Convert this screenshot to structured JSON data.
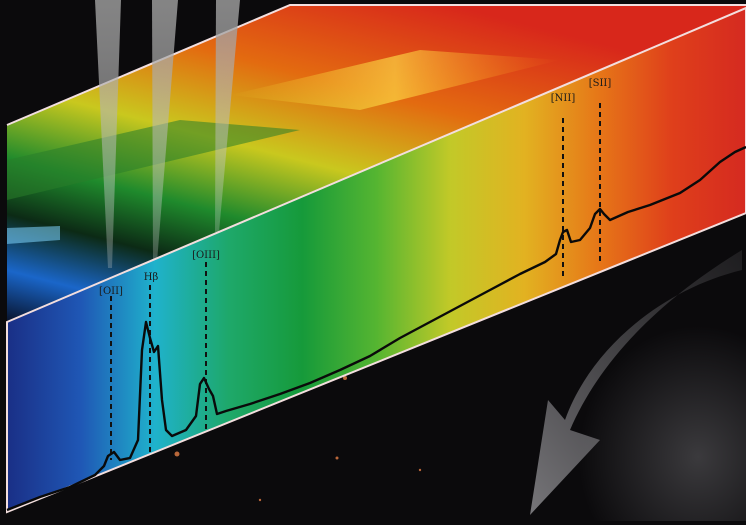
{
  "figure": {
    "lines": [
      {
        "id": "oii-3727",
        "label": "[OII]"
      },
      {
        "id": "h-beta",
        "label": "Hβ"
      },
      {
        "id": "oiii-5007",
        "label": "[OIII]"
      },
      {
        "id": "nii-6584",
        "label": "[NII]"
      },
      {
        "id": "sii-6717",
        "label": "[SII]"
      }
    ]
  }
}
